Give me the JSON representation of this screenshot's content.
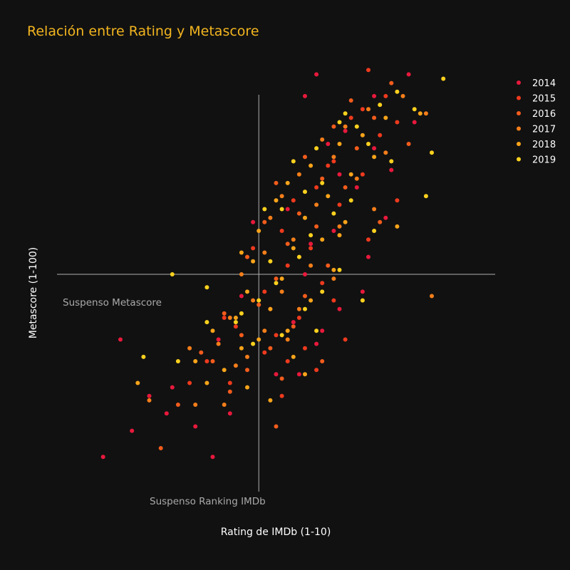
{
  "chart_data": {
    "type": "scatter",
    "title": "Relación entre Rating y Metascore",
    "title_color": "#f2b51f",
    "xlabel": "Rating de IMDb (1-10)",
    "ylabel": "Metascore (1-100)",
    "xlim": [
      2.0,
      9.6
    ],
    "ylim": [
      0,
      100
    ],
    "show_tick_labels": false,
    "grid": false,
    "background": "#111111",
    "legend_position": "top-right",
    "reference_lines": {
      "vertical": {
        "x": 5.5,
        "label": "Suspenso Ranking IMDb",
        "color": "#b0b0b0"
      },
      "horizontal": {
        "y": 50,
        "label": "Suspenso Metascore",
        "color": "#b0b0b0"
      }
    },
    "series": [
      {
        "name": "2014",
        "color": "#e8193c",
        "points": [
          [
            6.3,
            91
          ],
          [
            6.5,
            96
          ],
          [
            7.5,
            91
          ],
          [
            8.1,
            96
          ],
          [
            7.0,
            83
          ],
          [
            7.5,
            79
          ],
          [
            7.8,
            74
          ],
          [
            6.9,
            73
          ],
          [
            6.7,
            80
          ],
          [
            8.2,
            85
          ],
          [
            7.2,
            70
          ],
          [
            6.0,
            65
          ],
          [
            5.4,
            62
          ],
          [
            6.8,
            60
          ],
          [
            7.4,
            54
          ],
          [
            6.3,
            50
          ],
          [
            5.7,
            42
          ],
          [
            6.1,
            39
          ],
          [
            6.5,
            34
          ],
          [
            6.2,
            27
          ],
          [
            6.6,
            37
          ],
          [
            4.8,
            35
          ],
          [
            5.2,
            45
          ],
          [
            3.1,
            35
          ],
          [
            4.0,
            24
          ],
          [
            3.6,
            22
          ],
          [
            3.9,
            18
          ],
          [
            4.4,
            15
          ],
          [
            2.8,
            8
          ],
          [
            4.7,
            8
          ],
          [
            3.3,
            14
          ],
          [
            5.0,
            18
          ],
          [
            5.8,
            27
          ],
          [
            7.3,
            46
          ],
          [
            6.9,
            42
          ],
          [
            7.7,
            63
          ],
          [
            6.4,
            57
          ]
        ]
      },
      {
        "name": "2015",
        "color": "#ee3a1e",
        "points": [
          [
            7.4,
            97
          ],
          [
            7.7,
            91
          ],
          [
            7.3,
            88
          ],
          [
            7.9,
            85
          ],
          [
            7.6,
            82
          ],
          [
            7.1,
            86
          ],
          [
            6.7,
            75
          ],
          [
            7.3,
            73
          ],
          [
            6.5,
            70
          ],
          [
            6.9,
            66
          ],
          [
            6.1,
            67
          ],
          [
            5.9,
            60
          ],
          [
            6.4,
            56
          ],
          [
            6.0,
            52
          ],
          [
            6.6,
            48
          ],
          [
            5.6,
            46
          ],
          [
            6.8,
            44
          ],
          [
            6.2,
            40
          ],
          [
            5.8,
            36
          ],
          [
            6.3,
            33
          ],
          [
            7.0,
            35
          ],
          [
            4.6,
            30
          ],
          [
            5.1,
            38
          ],
          [
            4.3,
            25
          ],
          [
            5.0,
            25
          ],
          [
            5.6,
            32
          ],
          [
            5.4,
            56
          ],
          [
            7.4,
            58
          ],
          [
            7.9,
            67
          ],
          [
            6.5,
            28
          ],
          [
            5.9,
            22
          ],
          [
            4.9,
            40
          ],
          [
            6.8,
            76
          ],
          [
            6.0,
            30
          ]
        ]
      },
      {
        "name": "2016",
        "color": "#f25c1c",
        "points": [
          [
            7.8,
            94
          ],
          [
            7.1,
            90
          ],
          [
            7.5,
            86
          ],
          [
            6.8,
            84
          ],
          [
            7.2,
            79
          ],
          [
            6.3,
            77
          ],
          [
            6.6,
            72
          ],
          [
            5.8,
            71
          ],
          [
            7.0,
            70
          ],
          [
            6.2,
            64
          ],
          [
            5.6,
            62
          ],
          [
            6.5,
            61
          ],
          [
            6.0,
            57
          ],
          [
            5.3,
            54
          ],
          [
            6.7,
            52
          ],
          [
            5.8,
            49
          ],
          [
            6.3,
            45
          ],
          [
            5.5,
            43
          ],
          [
            4.9,
            41
          ],
          [
            6.1,
            38
          ],
          [
            5.2,
            36
          ],
          [
            5.7,
            33
          ],
          [
            4.5,
            32
          ],
          [
            5.3,
            28
          ],
          [
            4.1,
            20
          ],
          [
            5.9,
            26
          ],
          [
            6.6,
            30
          ],
          [
            7.6,
            62
          ],
          [
            8.1,
            80
          ],
          [
            4.7,
            30
          ],
          [
            5.0,
            23
          ],
          [
            5.8,
            15
          ],
          [
            3.8,
            10
          ]
        ]
      },
      {
        "name": "2017",
        "color": "#f47e1a",
        "points": [
          [
            8.0,
            91
          ],
          [
            7.4,
            88
          ],
          [
            7.0,
            84
          ],
          [
            6.6,
            81
          ],
          [
            7.7,
            78
          ],
          [
            6.8,
            77
          ],
          [
            6.2,
            73
          ],
          [
            7.2,
            72
          ],
          [
            5.9,
            68
          ],
          [
            6.5,
            66
          ],
          [
            5.7,
            63
          ],
          [
            6.9,
            61
          ],
          [
            6.1,
            58
          ],
          [
            5.6,
            55
          ],
          [
            6.4,
            52
          ],
          [
            5.2,
            50
          ],
          [
            6.8,
            49
          ],
          [
            5.9,
            46
          ],
          [
            5.4,
            44
          ],
          [
            6.2,
            42
          ],
          [
            5.0,
            40
          ],
          [
            5.6,
            37
          ],
          [
            4.8,
            34
          ],
          [
            5.3,
            31
          ],
          [
            4.3,
            33
          ],
          [
            6.0,
            35
          ],
          [
            3.6,
            21
          ],
          [
            4.4,
            20
          ],
          [
            4.9,
            20
          ],
          [
            5.1,
            29
          ],
          [
            7.5,
            65
          ],
          [
            8.4,
            87
          ],
          [
            8.5,
            45
          ]
        ]
      },
      {
        "name": "2018",
        "color": "#f8a41a",
        "points": [
          [
            8.3,
            87
          ],
          [
            7.7,
            86
          ],
          [
            7.3,
            82
          ],
          [
            6.9,
            80
          ],
          [
            7.5,
            77
          ],
          [
            6.4,
            75
          ],
          [
            7.1,
            73
          ],
          [
            6.0,
            71
          ],
          [
            6.7,
            68
          ],
          [
            5.8,
            67
          ],
          [
            6.3,
            63
          ],
          [
            7.0,
            62
          ],
          [
            5.5,
            60
          ],
          [
            6.6,
            58
          ],
          [
            6.1,
            56
          ],
          [
            5.4,
            53
          ],
          [
            6.8,
            51
          ],
          [
            5.9,
            49
          ],
          [
            5.3,
            46
          ],
          [
            6.4,
            44
          ],
          [
            5.7,
            42
          ],
          [
            5.1,
            40
          ],
          [
            6.0,
            37
          ],
          [
            5.5,
            35
          ],
          [
            4.7,
            37
          ],
          [
            5.2,
            33
          ],
          [
            4.4,
            30
          ],
          [
            4.9,
            28
          ],
          [
            3.4,
            25
          ],
          [
            5.3,
            24
          ],
          [
            4.6,
            25
          ],
          [
            6.9,
            59
          ],
          [
            7.9,
            61
          ],
          [
            5.7,
            21
          ],
          [
            6.3,
            27
          ],
          [
            6.1,
            31
          ],
          [
            5.2,
            55
          ]
        ]
      },
      {
        "name": "2019",
        "color": "#fdd11e",
        "points": [
          [
            8.7,
            95
          ],
          [
            7.9,
            92
          ],
          [
            7.6,
            89
          ],
          [
            8.2,
            88
          ],
          [
            7.2,
            84
          ],
          [
            6.9,
            85
          ],
          [
            7.4,
            80
          ],
          [
            6.5,
            79
          ],
          [
            7.8,
            76
          ],
          [
            6.6,
            71
          ],
          [
            6.3,
            69
          ],
          [
            7.1,
            67
          ],
          [
            5.9,
            65
          ],
          [
            6.8,
            64
          ],
          [
            7.5,
            60
          ],
          [
            6.4,
            59
          ],
          [
            6.2,
            54
          ],
          [
            5.7,
            53
          ],
          [
            6.9,
            51
          ],
          [
            5.8,
            48
          ],
          [
            6.6,
            46
          ],
          [
            5.5,
            44
          ],
          [
            6.3,
            42
          ],
          [
            5.1,
            39
          ],
          [
            5.9,
            36
          ],
          [
            5.4,
            34
          ],
          [
            4.6,
            39
          ],
          [
            3.5,
            31
          ],
          [
            4.1,
            30
          ],
          [
            6.5,
            37
          ],
          [
            7.3,
            44
          ],
          [
            4.0,
            50
          ],
          [
            5.2,
            41
          ],
          [
            8.4,
            68
          ],
          [
            8.5,
            78
          ],
          [
            5.6,
            65
          ],
          [
            6.1,
            76
          ],
          [
            7.0,
            87
          ],
          [
            4.6,
            47
          ]
        ]
      }
    ]
  }
}
